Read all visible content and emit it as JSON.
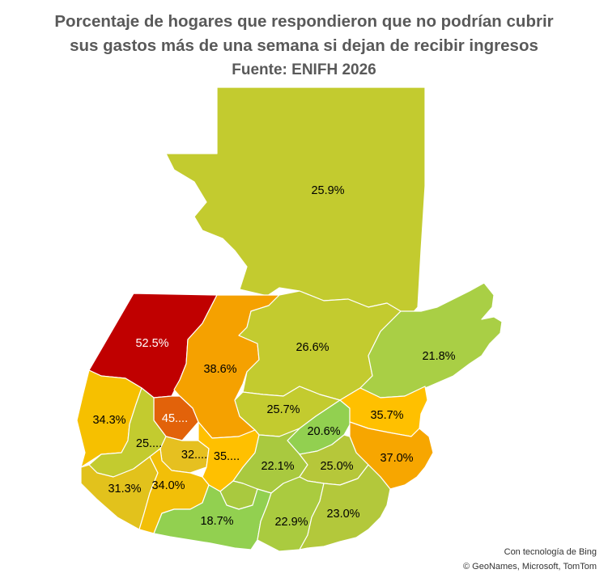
{
  "title": {
    "line1": "Porcentaje de hogares que respondieron que no podrían cubrir",
    "line2": "sus gastos más de una semana si dejan de recibir ingresos",
    "source": "Fuente: ENIFH 2026"
  },
  "regions": [
    {
      "name": "Petén",
      "label": "25.9%",
      "value": 25.9,
      "color": "#c3cb2f"
    },
    {
      "name": "Huehuetenango",
      "label": "52.5%",
      "value": 52.5,
      "color": "#c00000"
    },
    {
      "name": "Quiché",
      "label": "38.6%",
      "value": 38.6,
      "color": "#f5a100"
    },
    {
      "name": "Alta Verapaz",
      "label": "26.6%",
      "value": 26.6,
      "color": "#c3cb2f"
    },
    {
      "name": "Izabal",
      "label": "21.8%",
      "value": 21.8,
      "color": "#a9cf45"
    },
    {
      "name": "San Marcos",
      "label": "34.3%",
      "value": 34.3,
      "color": "#f6c000"
    },
    {
      "name": "Totonicapán",
      "label": "45....",
      "value": 45,
      "color": "#e2620a"
    },
    {
      "name": "Quetzaltenango",
      "label": "25....",
      "value": 25,
      "color": "#c3cb2f"
    },
    {
      "name": "Baja Verapaz",
      "label": "25.7%",
      "value": 25.7,
      "color": "#c3cb2f"
    },
    {
      "name": "El Progreso",
      "label": "20.6%",
      "value": 20.6,
      "color": "#92d050"
    },
    {
      "name": "Zacapa",
      "label": "35.7%",
      "value": 35.7,
      "color": "#ffc000"
    },
    {
      "name": "Chiquimula",
      "label": "37.0%",
      "value": 37.0,
      "color": "#f7a600"
    },
    {
      "name": "Sololá",
      "label": "32....",
      "value": 32,
      "color": "#e6c020"
    },
    {
      "name": "Chimaltenango",
      "label": "35....",
      "value": 35,
      "color": "#ffc000"
    },
    {
      "name": "Guatemala",
      "label": "22.1%",
      "value": 22.1,
      "color": "#a9c93f"
    },
    {
      "name": "Jalapa",
      "label": "25.0%",
      "value": 25.0,
      "color": "#b6c73a"
    },
    {
      "name": "Retalhuleu",
      "label": "31.3%",
      "value": 31.3,
      "color": "#e2c21c"
    },
    {
      "name": "Suchitepéquez",
      "label": "34.0%",
      "value": 34.0,
      "color": "#f2bf08"
    },
    {
      "name": "Sacatepéquez",
      "label": "",
      "value": null,
      "color": "#a9c93f"
    },
    {
      "name": "Escuintla",
      "label": "18.7%",
      "value": 18.7,
      "color": "#92d050"
    },
    {
      "name": "Santa Rosa",
      "label": "22.9%",
      "value": 22.9,
      "color": "#aacb3f"
    },
    {
      "name": "Jutiapa",
      "label": "23.0%",
      "value": 23.0,
      "color": "#b3c83b"
    }
  ],
  "credits": {
    "line1": "Con tecnología de Bing",
    "line2": "© GeoNames, Microsoft, TomTom"
  }
}
